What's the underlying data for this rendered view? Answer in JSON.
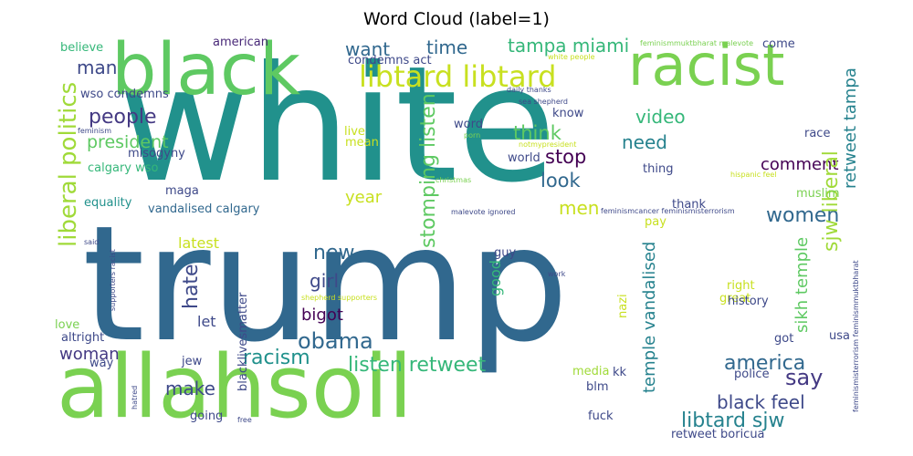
{
  "title": "Word Cloud (label=1)",
  "words": [
    {
      "text": "white",
      "color": "#21918c"
    },
    {
      "text": "trump",
      "color": "#31688e"
    },
    {
      "text": "black",
      "color": "#5ec962"
    },
    {
      "text": "racist",
      "color": "#7ad151"
    },
    {
      "text": "allahsoil",
      "color": "#7ad151"
    },
    {
      "text": "libtard libtard",
      "color": "#c8e020"
    },
    {
      "text": "tampa miami",
      "color": "#35b779"
    },
    {
      "text": "time",
      "color": "#31688e"
    },
    {
      "text": "want",
      "color": "#31688e"
    },
    {
      "text": "people",
      "color": "#443983"
    },
    {
      "text": "man",
      "color": "#3e4989"
    },
    {
      "text": "liberal politics",
      "color": "#a0da39"
    },
    {
      "text": "wso condemns",
      "color": "#3e4989"
    },
    {
      "text": "american",
      "color": "#482878"
    },
    {
      "text": "believe",
      "color": "#35b779"
    },
    {
      "text": "condemns act",
      "color": "#3e4989"
    },
    {
      "text": "president",
      "color": "#5ec962"
    },
    {
      "text": "misogyny",
      "color": "#3e4989"
    },
    {
      "text": "calgary wso",
      "color": "#35b779"
    },
    {
      "text": "equality",
      "color": "#21918c"
    },
    {
      "text": "maga",
      "color": "#3e4989"
    },
    {
      "text": "vandalised calgary",
      "color": "#31688e"
    },
    {
      "text": "think",
      "color": "#5ec962"
    },
    {
      "text": "stop",
      "color": "#440154"
    },
    {
      "text": "look",
      "color": "#31688e"
    },
    {
      "text": "need",
      "color": "#26828e"
    },
    {
      "text": "video",
      "color": "#35b779"
    },
    {
      "text": "comment",
      "color": "#440154"
    },
    {
      "text": "women",
      "color": "#31688e"
    },
    {
      "text": "retweet tampa",
      "color": "#26828e"
    },
    {
      "text": "sjw liberal",
      "color": "#a0da39"
    },
    {
      "text": "stomping listen",
      "color": "#5ec962"
    },
    {
      "text": "new",
      "color": "#31688e"
    },
    {
      "text": "hate",
      "color": "#3e4989"
    },
    {
      "text": "girl",
      "color": "#3e4989"
    },
    {
      "text": "latest",
      "color": "#c8e020"
    },
    {
      "text": "obama",
      "color": "#31688e"
    },
    {
      "text": "bigot",
      "color": "#440154"
    },
    {
      "text": "let",
      "color": "#3e4989"
    },
    {
      "text": "racism",
      "color": "#21918c"
    },
    {
      "text": "listen retweet",
      "color": "#35b779"
    },
    {
      "text": "america",
      "color": "#31688e"
    },
    {
      "text": "say",
      "color": "#443983"
    },
    {
      "text": "make",
      "color": "#3e4989"
    },
    {
      "text": "black feel",
      "color": "#3e4989"
    },
    {
      "text": "libtard sjw",
      "color": "#26828e"
    },
    {
      "text": "temple vandalised",
      "color": "#26828e"
    },
    {
      "text": "sikh temple",
      "color": "#5ec962"
    },
    {
      "text": "year",
      "color": "#c8e020"
    },
    {
      "text": "men",
      "color": "#c8e020"
    },
    {
      "text": "woman",
      "color": "#443983"
    },
    {
      "text": "good",
      "color": "#35b779"
    },
    {
      "text": "guy",
      "color": "#3e4989"
    },
    {
      "text": "word",
      "color": "#3e4989"
    },
    {
      "text": "world",
      "color": "#3e4989"
    },
    {
      "text": "live",
      "color": "#c8e020"
    },
    {
      "text": "mean",
      "color": "#c8e020"
    },
    {
      "text": "know",
      "color": "#3e4989"
    },
    {
      "text": "race",
      "color": "#3e4989"
    },
    {
      "text": "thing",
      "color": "#3e4989"
    },
    {
      "text": "muslim",
      "color": "#7ad151"
    },
    {
      "text": "thank",
      "color": "#3e4989"
    },
    {
      "text": "pay",
      "color": "#c8e020"
    },
    {
      "text": "great",
      "color": "#c8e020"
    },
    {
      "text": "right",
      "color": "#c8e020"
    },
    {
      "text": "history",
      "color": "#3e4989"
    },
    {
      "text": "got",
      "color": "#3e4989"
    },
    {
      "text": "usa",
      "color": "#3e4989"
    },
    {
      "text": "police",
      "color": "#3e4989"
    },
    {
      "text": "nazi",
      "color": "#c8e020"
    },
    {
      "text": "blm",
      "color": "#3e4989"
    },
    {
      "text": "kk",
      "color": "#3e4989"
    },
    {
      "text": "media",
      "color": "#a0da39"
    },
    {
      "text": "fuck",
      "color": "#3e4989"
    },
    {
      "text": "retweet boricua",
      "color": "#3e4989"
    },
    {
      "text": "jew",
      "color": "#3e4989"
    },
    {
      "text": "going",
      "color": "#3e4989"
    },
    {
      "text": "way",
      "color": "#3e4989"
    },
    {
      "text": "love",
      "color": "#7ad151"
    },
    {
      "text": "altright",
      "color": "#3e4989"
    },
    {
      "text": "blacklivesmatter",
      "color": "#3e4989"
    },
    {
      "text": "come",
      "color": "#3e4989"
    },
    {
      "text": "feminismcancer feminismisterrorism",
      "color": "#3e4989"
    },
    {
      "text": "malevote ignored",
      "color": "#3e4989"
    },
    {
      "text": "daily thanks",
      "color": "#3e4989"
    },
    {
      "text": "sea shepherd",
      "color": "#3e4989"
    },
    {
      "text": "notmypresident",
      "color": "#c8e020"
    },
    {
      "text": "porn",
      "color": "#7ad151"
    },
    {
      "text": "christmas",
      "color": "#7ad151"
    },
    {
      "text": "hispanic feel",
      "color": "#c8e020"
    },
    {
      "text": "feminismmuktbharat malevote",
      "color": "#7ad151"
    },
    {
      "text": "white people",
      "color": "#c8e020"
    },
    {
      "text": "feminism",
      "color": "#3e4989"
    },
    {
      "text": "supporters racist",
      "color": "#3e4989"
    },
    {
      "text": "shepherd supporters",
      "color": "#c8e020"
    },
    {
      "text": "hatred",
      "color": "#3e4989"
    },
    {
      "text": "free",
      "color": "#3e4989"
    },
    {
      "text": "work",
      "color": "#3e4989"
    },
    {
      "text": "said",
      "color": "#3e4989"
    },
    {
      "text": "feminismisterrorism feminismmuktbharat",
      "color": "#3e4989"
    }
  ]
}
